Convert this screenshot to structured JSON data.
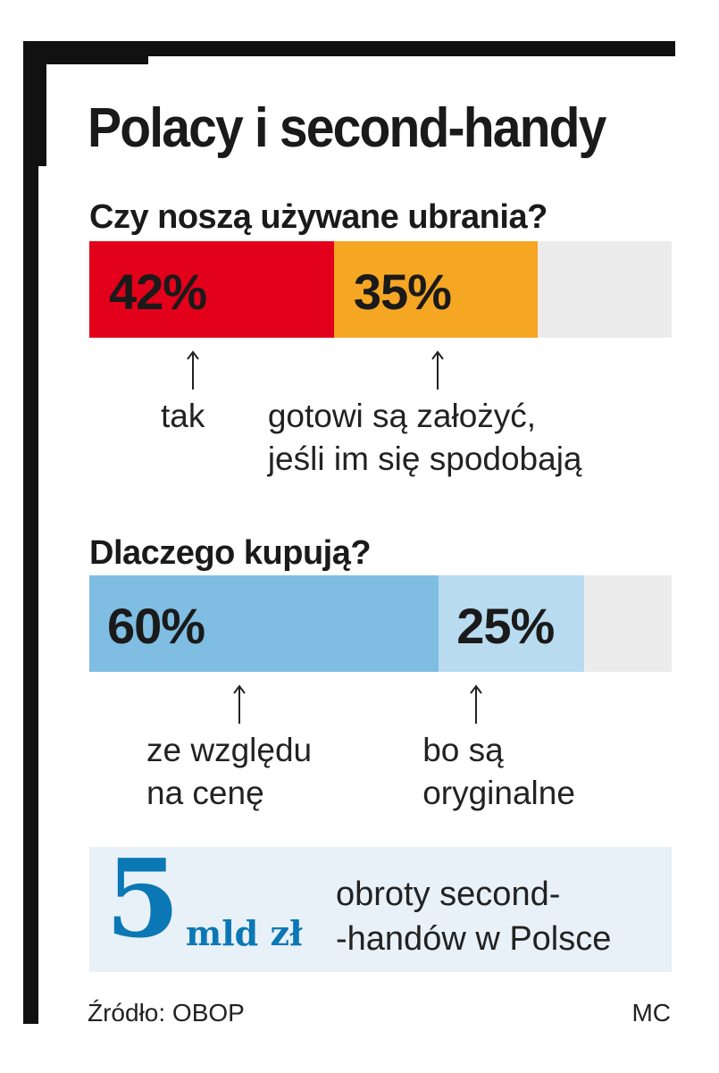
{
  "title": "Polacy i second-handy",
  "chart_data": [
    {
      "type": "bar",
      "orientation": "horizontal-stacked",
      "title": "Czy noszą używane ubrania?",
      "total": 100,
      "segments": [
        {
          "value": 42,
          "label": "42%",
          "caption_lines": [
            "tak"
          ],
          "color": "#e2001a"
        },
        {
          "value": 35,
          "label": "35%",
          "caption_lines": [
            "gotowi są założyć,",
            "jeśli im się spodobają"
          ],
          "color": "#f5a623"
        }
      ],
      "remainder_color": "#ececec"
    },
    {
      "type": "bar",
      "orientation": "horizontal-stacked",
      "title": "Dlaczego kupują?",
      "total": 100,
      "segments": [
        {
          "value": 60,
          "label": "60%",
          "caption_lines": [
            "ze względu",
            "na cenę"
          ],
          "color": "#7fbde2"
        },
        {
          "value": 25,
          "label": "25%",
          "caption_lines": [
            "bo są",
            "oryginalne"
          ],
          "color": "#b9dbef"
        }
      ],
      "remainder_color": "#ececec"
    }
  ],
  "infobox": {
    "number": "5",
    "unit": "mld zł",
    "text_lines": [
      "obroty second-",
      "-handów w Polsce"
    ],
    "color": "#0b78b5"
  },
  "footer": {
    "source": "Źródło: OBOP",
    "author": "MC"
  }
}
